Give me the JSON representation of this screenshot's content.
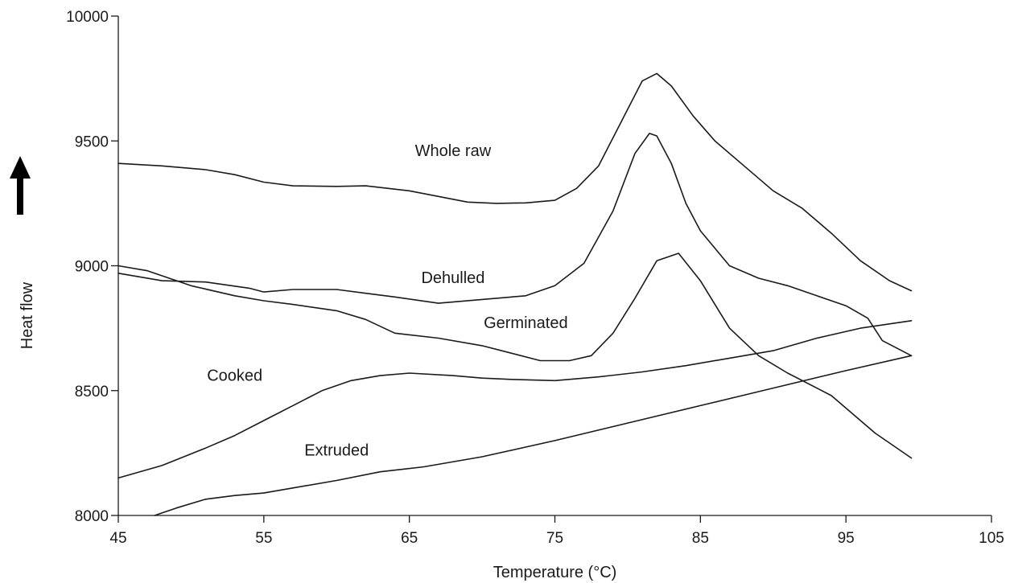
{
  "chart_data": {
    "type": "line",
    "xlabel": "Temperature (°C)",
    "ylabel": "Heat flow",
    "xlim": [
      45,
      105
    ],
    "ylim": [
      8000,
      10000
    ],
    "x_ticks": [
      45,
      55,
      65,
      75,
      85,
      95,
      105
    ],
    "y_ticks": [
      8000,
      8500,
      9000,
      9500,
      10000
    ],
    "grid": false,
    "arrow": "up",
    "series": [
      {
        "name": "Whole raw",
        "label_at": [
          68,
          9440
        ],
        "x": [
          45,
          48,
          51,
          53,
          55,
          57,
          60,
          62,
          65,
          69,
          71,
          73,
          75,
          76.5,
          78,
          79.5,
          81,
          82,
          83,
          84.5,
          86,
          88,
          90,
          92,
          94,
          96,
          98,
          99.5
        ],
        "y": [
          9410,
          9400,
          9385,
          9365,
          9335,
          9320,
          9318,
          9320,
          9300,
          9255,
          9250,
          9252,
          9262,
          9310,
          9400,
          9570,
          9740,
          9770,
          9720,
          9600,
          9500,
          9400,
          9300,
          9230,
          9130,
          9020,
          8940,
          8900
        ]
      },
      {
        "name": "Dehulled",
        "label_at": [
          68,
          8930
        ],
        "x": [
          45,
          48,
          51,
          54,
          55,
          57,
          60,
          62,
          64,
          67,
          70,
          73,
          75,
          77,
          79,
          80.5,
          81.5,
          82,
          83,
          84,
          85,
          87,
          89,
          91,
          93,
          95,
          96.5,
          97.5,
          99.5
        ],
        "y": [
          8970,
          8940,
          8935,
          8910,
          8895,
          8905,
          8905,
          8890,
          8875,
          8850,
          8865,
          8880,
          8920,
          9010,
          9220,
          9450,
          9530,
          9520,
          9410,
          9250,
          9140,
          9000,
          8950,
          8920,
          8880,
          8840,
          8790,
          8700,
          8640
        ]
      },
      {
        "name": "Germinated",
        "label_at": [
          73,
          8750
        ],
        "x": [
          45,
          47,
          50,
          53,
          55,
          57,
          60,
          62,
          64,
          67,
          70,
          72,
          74,
          76,
          77.5,
          79,
          80.5,
          82,
          83.5,
          85,
          87,
          89,
          91,
          93,
          94,
          95,
          97,
          99.5
        ],
        "y": [
          9000,
          8980,
          8920,
          8880,
          8860,
          8845,
          8820,
          8785,
          8730,
          8710,
          8680,
          8650,
          8620,
          8620,
          8640,
          8730,
          8870,
          9020,
          9050,
          8940,
          8750,
          8640,
          8570,
          8510,
          8480,
          8430,
          8330,
          8230
        ]
      },
      {
        "name": "Cooked",
        "label_at": [
          53,
          8540
        ],
        "x": [
          45,
          48,
          51,
          53,
          55,
          57,
          59,
          61,
          63,
          65,
          68,
          70,
          72,
          75,
          78,
          81,
          84,
          87,
          90,
          93,
          96,
          99.5
        ],
        "y": [
          8150,
          8200,
          8270,
          8320,
          8380,
          8440,
          8500,
          8540,
          8560,
          8570,
          8560,
          8550,
          8545,
          8540,
          8555,
          8575,
          8600,
          8630,
          8660,
          8710,
          8750,
          8780
        ]
      },
      {
        "name": "Extruded",
        "label_at": [
          60,
          8240
        ],
        "x": [
          47.5,
          49,
          51,
          53,
          55,
          57,
          60,
          63,
          66,
          70,
          75,
          80,
          85,
          90,
          95,
          99.5
        ],
        "y": [
          8000,
          8030,
          8065,
          8080,
          8090,
          8110,
          8140,
          8175,
          8195,
          8235,
          8300,
          8370,
          8440,
          8510,
          8580,
          8640
        ]
      }
    ]
  }
}
